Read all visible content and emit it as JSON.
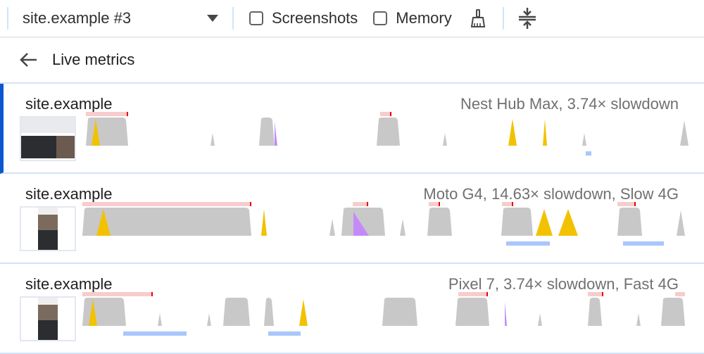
{
  "toolbar": {
    "recording_select": "site.example #3",
    "screenshots_label": "Screenshots",
    "screenshots_checked": false,
    "memory_label": "Memory",
    "memory_checked": false,
    "icons": [
      "chevron-down-icon",
      "broom-icon",
      "collapse-vertical-icon"
    ]
  },
  "live_metrics": {
    "label": "Live metrics",
    "icon": "arrow-left-icon"
  },
  "recordings": [
    {
      "name": "site.example",
      "details": "Nest Hub Max, 3.74× slowdown",
      "selected": true
    },
    {
      "name": "site.example",
      "details": "Moto G4, 14.63× slowdown, Slow 4G",
      "selected": false
    },
    {
      "name": "site.example",
      "details": "Pixel 7, 3.74× slowdown, Fast 4G",
      "selected": false
    }
  ],
  "colors": {
    "accent": "#0b57d0",
    "cpu_gray": "#c8c8c8",
    "scripting": "#f2c200",
    "rendering": "#c58af9",
    "long_task": "#f8cccc",
    "network": "#a8c7fa"
  }
}
